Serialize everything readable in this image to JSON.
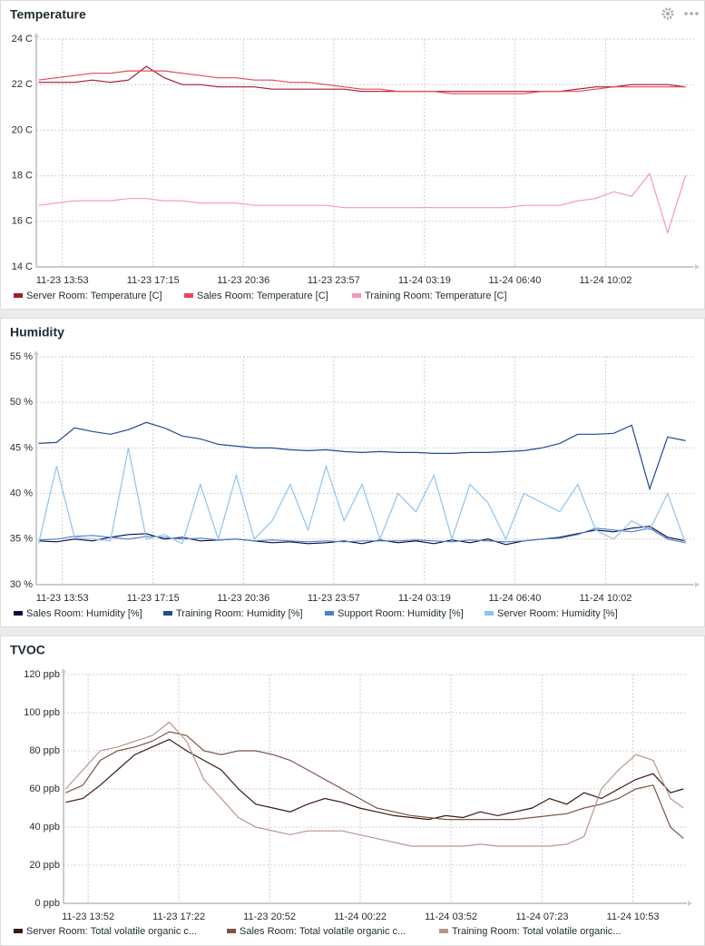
{
  "chart_data": [
    {
      "type": "line",
      "title": "Temperature",
      "x": [
        "11-23 13:00",
        "11-23 13:40",
        "11-23 14:20",
        "11-23 15:00",
        "11-23 15:40",
        "11-23 16:20",
        "11-23 17:00",
        "11-23 17:40",
        "11-23 18:20",
        "11-23 19:00",
        "11-23 19:40",
        "11-23 20:20",
        "11-23 21:00",
        "11-23 21:40",
        "11-23 22:20",
        "11-23 23:00",
        "11-23 23:40",
        "11-24 00:20",
        "11-24 01:00",
        "11-24 01:40",
        "11-24 02:20",
        "11-24 03:00",
        "11-24 03:40",
        "11-24 04:20",
        "11-24 05:00",
        "11-24 05:40",
        "11-24 06:20",
        "11-24 07:00",
        "11-24 07:40",
        "11-24 08:20",
        "11-24 09:00",
        "11-24 09:40",
        "11-24 10:20",
        "11-24 11:00",
        "11-24 11:40",
        "11-24 12:20",
        "11-24 13:00"
      ],
      "xlim": [
        "11-23 12:55",
        "11-24 13:19"
      ],
      "xticks": [
        "11-23 13:53",
        "11-23 17:15",
        "11-23 20:36",
        "11-23 23:57",
        "11-24 03:19",
        "11-24 06:40",
        "11-24 10:02"
      ],
      "ylim": [
        14,
        24
      ],
      "yticks": [
        {
          "value": 14,
          "label": "14 C"
        },
        {
          "value": 16,
          "label": "16 C"
        },
        {
          "value": 18,
          "label": "18 C"
        },
        {
          "value": 20,
          "label": "20 C"
        },
        {
          "value": 22,
          "label": "22 C"
        },
        {
          "value": 24,
          "label": "24 C"
        }
      ],
      "grid": true,
      "series": [
        {
          "name": "Server Room: Temperature [C]",
          "color": "#a51b2e",
          "values": [
            22.1,
            22.1,
            22.1,
            22.2,
            22.1,
            22.2,
            22.8,
            22.3,
            22.0,
            22.0,
            21.9,
            21.9,
            21.9,
            21.8,
            21.8,
            21.8,
            21.8,
            21.8,
            21.7,
            21.7,
            21.7,
            21.7,
            21.7,
            21.7,
            21.7,
            21.7,
            21.7,
            21.7,
            21.7,
            21.7,
            21.8,
            21.9,
            21.9,
            22.0,
            22.0,
            22.0,
            21.9
          ]
        },
        {
          "name": "Sales Room: Temperature [C]",
          "color": "#e5475b",
          "values": [
            22.2,
            22.3,
            22.4,
            22.5,
            22.5,
            22.6,
            22.6,
            22.6,
            22.5,
            22.4,
            22.3,
            22.3,
            22.2,
            22.2,
            22.1,
            22.1,
            22.0,
            21.9,
            21.8,
            21.8,
            21.7,
            21.7,
            21.7,
            21.6,
            21.6,
            21.6,
            21.6,
            21.6,
            21.7,
            21.7,
            21.7,
            21.8,
            21.9,
            21.9,
            21.9,
            21.9,
            21.9
          ]
        },
        {
          "name": "Training Room: Temperature [C]",
          "color": "#f598ae",
          "values": [
            16.7,
            16.8,
            16.9,
            16.9,
            16.9,
            17.0,
            17.0,
            16.9,
            16.9,
            16.8,
            16.8,
            16.8,
            16.7,
            16.7,
            16.7,
            16.7,
            16.7,
            16.6,
            16.6,
            16.6,
            16.6,
            16.6,
            16.6,
            16.6,
            16.6,
            16.6,
            16.6,
            16.7,
            16.7,
            16.7,
            16.9,
            17.0,
            17.3,
            17.1,
            18.1,
            15.5,
            18.0
          ]
        }
      ]
    },
    {
      "type": "line",
      "title": "Humidity",
      "x": [
        "11-23 13:00",
        "11-23 13:40",
        "11-23 14:20",
        "11-23 15:00",
        "11-23 15:40",
        "11-23 16:20",
        "11-23 17:00",
        "11-23 17:40",
        "11-23 18:20",
        "11-23 19:00",
        "11-23 19:40",
        "11-23 20:20",
        "11-23 21:00",
        "11-23 21:40",
        "11-23 22:20",
        "11-23 23:00",
        "11-23 23:40",
        "11-24 00:20",
        "11-24 01:00",
        "11-24 01:40",
        "11-24 02:20",
        "11-24 03:00",
        "11-24 03:40",
        "11-24 04:20",
        "11-24 05:00",
        "11-24 05:40",
        "11-24 06:20",
        "11-24 07:00",
        "11-24 07:40",
        "11-24 08:20",
        "11-24 09:00",
        "11-24 09:40",
        "11-24 10:20",
        "11-24 11:00",
        "11-24 11:40",
        "11-24 12:20",
        "11-24 13:00"
      ],
      "xlim": [
        "11-23 12:55",
        "11-24 13:19"
      ],
      "xticks": [
        "11-23 13:53",
        "11-23 17:15",
        "11-23 20:36",
        "11-23 23:57",
        "11-24 03:19",
        "11-24 06:40",
        "11-24 10:02"
      ],
      "ylim": [
        30,
        55
      ],
      "yticks": [
        {
          "value": 30,
          "label": "30 %"
        },
        {
          "value": 35,
          "label": "35 %"
        },
        {
          "value": 40,
          "label": "40 %"
        },
        {
          "value": 45,
          "label": "45 %"
        },
        {
          "value": 50,
          "label": "50 %"
        },
        {
          "value": 55,
          "label": "55 %"
        }
      ],
      "grid": true,
      "series": [
        {
          "name": "Sales Room: Humidity [%]",
          "color": "#0c0c3c",
          "values": [
            34.8,
            34.7,
            35.0,
            34.8,
            35.2,
            35.5,
            35.6,
            35.0,
            35.2,
            34.8,
            34.9,
            35.0,
            34.8,
            34.6,
            34.7,
            34.5,
            34.6,
            34.8,
            34.5,
            34.9,
            34.6,
            34.8,
            34.5,
            34.9,
            34.6,
            35.0,
            34.4,
            34.8,
            35.0,
            35.2,
            35.6,
            36.0,
            35.8,
            36.2,
            36.4,
            35.2,
            34.8
          ]
        },
        {
          "name": "Training Room: Humidity [%]",
          "color": "#1f4a96",
          "values": [
            45.5,
            45.6,
            47.2,
            46.8,
            46.5,
            47.0,
            47.8,
            47.2,
            46.3,
            46.0,
            45.4,
            45.2,
            45.0,
            45.0,
            44.8,
            44.7,
            44.8,
            44.6,
            44.5,
            44.6,
            44.5,
            44.5,
            44.4,
            44.4,
            44.5,
            44.5,
            44.6,
            44.7,
            45.0,
            45.5,
            46.5,
            46.5,
            46.6,
            47.5,
            40.5,
            46.2,
            45.8
          ]
        },
        {
          "name": "Support Room: Humidity [%]",
          "color": "#4a7fd4",
          "values": [
            34.9,
            35.0,
            35.3,
            35.4,
            35.2,
            35.0,
            35.3,
            35.2,
            35.0,
            35.1,
            34.9,
            35.0,
            34.8,
            34.9,
            34.8,
            34.7,
            34.8,
            34.7,
            34.8,
            34.8,
            34.8,
            34.9,
            34.8,
            34.7,
            34.9,
            34.8,
            34.7,
            34.8,
            35.0,
            35.1,
            35.5,
            36.2,
            36.0,
            35.8,
            36.2,
            35.0,
            34.6
          ]
        },
        {
          "name": "Server Room: Humidity [%]",
          "color": "#8ec3ee",
          "values": [
            34.5,
            43.0,
            35.2,
            35.0,
            34.8,
            45.0,
            35.0,
            35.5,
            34.5,
            41.0,
            35.0,
            42.0,
            35.0,
            37.0,
            41.0,
            36.0,
            43.0,
            37.0,
            41.0,
            35.0,
            40.0,
            38.0,
            42.0,
            35.0,
            41.0,
            39.0,
            35.0,
            40.0,
            39.0,
            38.0,
            41.0,
            36.0,
            35.0,
            37.0,
            36.0,
            40.0,
            34.5
          ]
        }
      ]
    },
    {
      "type": "line",
      "title": "TVOC",
      "x": [
        "11-23 13:00",
        "11-23 13:40",
        "11-23 14:20",
        "11-23 15:00",
        "11-23 15:40",
        "11-23 16:20",
        "11-23 17:00",
        "11-23 17:40",
        "11-23 18:20",
        "11-23 19:00",
        "11-23 19:40",
        "11-23 20:20",
        "11-23 21:00",
        "11-23 21:40",
        "11-23 22:20",
        "11-23 23:00",
        "11-23 23:40",
        "11-24 00:20",
        "11-24 01:00",
        "11-24 01:40",
        "11-24 02:20",
        "11-24 03:00",
        "11-24 03:40",
        "11-24 04:20",
        "11-24 05:00",
        "11-24 05:40",
        "11-24 06:20",
        "11-24 07:00",
        "11-24 07:40",
        "11-24 08:20",
        "11-24 09:00",
        "11-24 09:40",
        "11-24 10:20",
        "11-24 11:00",
        "11-24 11:40",
        "11-24 12:20",
        "11-24 12:50"
      ],
      "xlim": [
        "11-23 12:55",
        "11-24 12:58"
      ],
      "xticks": [
        "11-23 13:52",
        "11-23 17:22",
        "11-23 20:52",
        "11-24 00:22",
        "11-24 03:52",
        "11-24 07:23",
        "11-24 10:53"
      ],
      "ylim": [
        0,
        120
      ],
      "yticks": [
        {
          "value": 0,
          "label": "0 ppb"
        },
        {
          "value": 20,
          "label": "20 ppb"
        },
        {
          "value": 40,
          "label": "40 ppb"
        },
        {
          "value": 60,
          "label": "60 ppb"
        },
        {
          "value": 80,
          "label": "80 ppb"
        },
        {
          "value": 100,
          "label": "100 ppb"
        },
        {
          "value": 120,
          "label": "120 ppb"
        }
      ],
      "grid": true,
      "series": [
        {
          "name": "Server Room: Total volatile organic c...",
          "color": "#3a1a10",
          "values": [
            53,
            55,
            62,
            70,
            78,
            82,
            86,
            80,
            75,
            70,
            60,
            52,
            50,
            48,
            52,
            55,
            53,
            50,
            48,
            46,
            45,
            44,
            46,
            45,
            48,
            46,
            48,
            50,
            55,
            52,
            58,
            55,
            60,
            65,
            68,
            58,
            60
          ]
        },
        {
          "name": "Sales Room: Total volatile organic c...",
          "color": "#7a5548",
          "values": [
            58,
            62,
            75,
            80,
            82,
            85,
            90,
            88,
            80,
            78,
            80,
            80,
            78,
            75,
            70,
            65,
            60,
            55,
            50,
            48,
            46,
            45,
            44,
            44,
            44,
            44,
            44,
            45,
            46,
            47,
            50,
            52,
            55,
            60,
            62,
            40,
            34
          ]
        },
        {
          "name": "Training Room: Total volatile organic...",
          "color": "#b8968a",
          "values": [
            60,
            70,
            80,
            82,
            85,
            88,
            95,
            85,
            65,
            55,
            45,
            40,
            38,
            36,
            38,
            38,
            38,
            36,
            34,
            32,
            30,
            30,
            30,
            30,
            31,
            30,
            30,
            30,
            30,
            31,
            35,
            60,
            70,
            78,
            75,
            55,
            50
          ]
        }
      ]
    }
  ]
}
